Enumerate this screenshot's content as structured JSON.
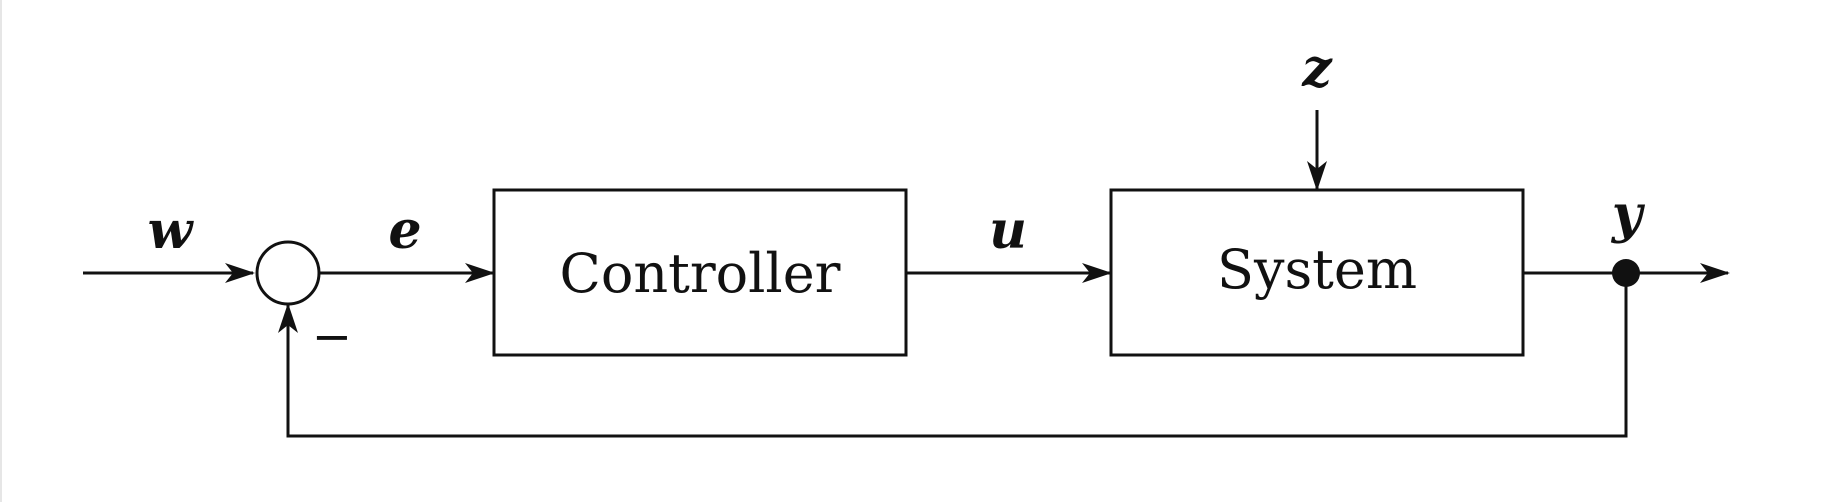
{
  "blocks": {
    "controller": "Controller",
    "system": "System"
  },
  "signals": {
    "reference": "w",
    "error": "e",
    "control": "u",
    "disturbance": "z",
    "output": "y"
  },
  "summing_junction": {
    "feedback_sign": "−"
  }
}
